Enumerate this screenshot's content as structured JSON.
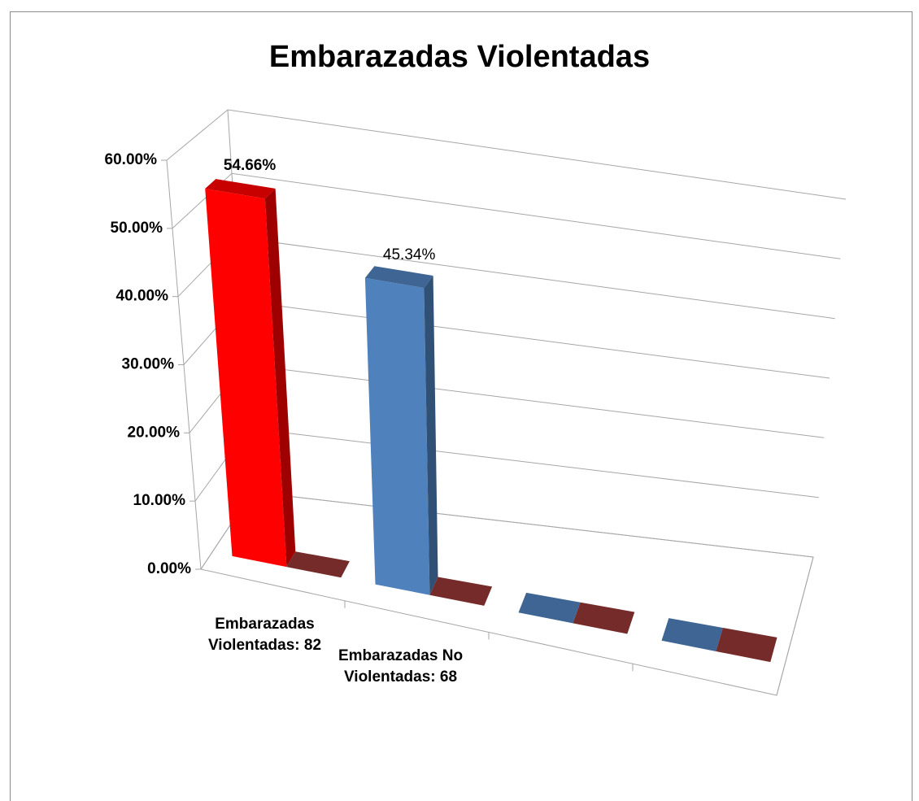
{
  "chart_data": {
    "type": "bar3d",
    "title": "Embarazadas Violentadas",
    "categories": [
      "Embarazadas Violentadas: 82",
      "Embarazadas No Violentadas: 68",
      null,
      null
    ],
    "series": [
      {
        "values": [
          54.66,
          45.34,
          0,
          0
        ],
        "colors": [
          "#ff0000",
          "#4f81bd",
          "#4f81bd",
          "#4f81bd"
        ],
        "value_labels": [
          "54.66%",
          "45.34%",
          null,
          null
        ]
      },
      {
        "values": [
          0,
          0,
          0,
          0
        ],
        "color": "#953735"
      }
    ],
    "ylim": [
      0,
      60
    ],
    "yticks": [
      {
        "value": 0,
        "label": "0.00%"
      },
      {
        "value": 10,
        "label": "10.00%"
      },
      {
        "value": 20,
        "label": "20.00%"
      },
      {
        "value": 30,
        "label": "30.00%"
      },
      {
        "value": 40,
        "label": "40.00%"
      },
      {
        "value": 50,
        "label": "50.00%"
      },
      {
        "value": 60,
        "label": "60.00%"
      }
    ],
    "grid": true
  }
}
